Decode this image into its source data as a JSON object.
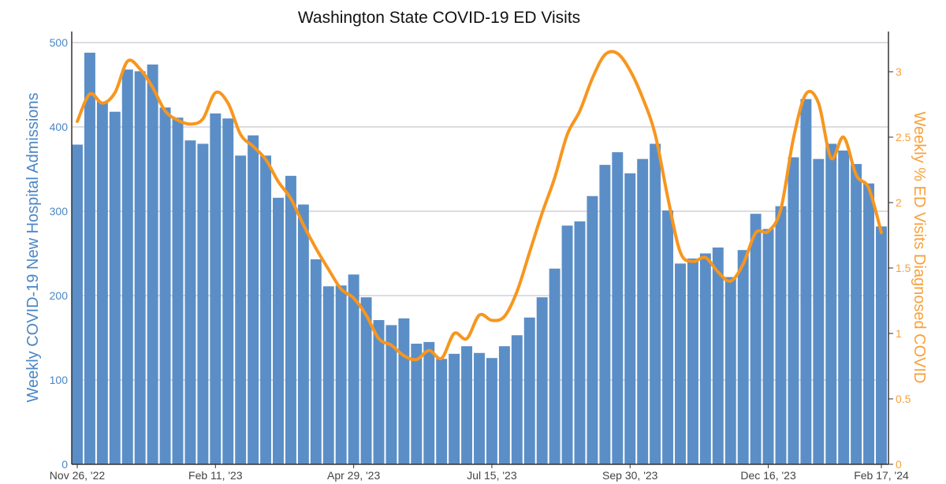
{
  "chart_data": {
    "type": "bar+line",
    "title": "Washington State COVID-19 ED Visits",
    "ylabel_left": "Weekly COVID-19 New Hospital Admissions",
    "ylabel_right": "Weekly % ED Visits Diagnosed COVID",
    "ylim_left": [
      0,
      500
    ],
    "ylim_right": [
      0,
      3.3
    ],
    "yticks_left": [
      "0",
      "100",
      "200",
      "300",
      "400",
      "500"
    ],
    "yticks_right": [
      "0",
      "0.5",
      "1",
      "1.5",
      "2",
      "2.5",
      "3"
    ],
    "xtick_labels": [
      {
        "index": 0,
        "label": "Nov 26, '22"
      },
      {
        "index": 11,
        "label": "Feb 11, '23"
      },
      {
        "index": 22,
        "label": "Apr 29, '23"
      },
      {
        "index": 33,
        "label": "Jul 15, '23"
      },
      {
        "index": 44,
        "label": "Sep 30, '23"
      },
      {
        "index": 55,
        "label": "Dec 16, '23"
      },
      {
        "index": 64,
        "label": "Feb 17, '24"
      }
    ],
    "grid": true,
    "colors": {
      "bars": "#5b8ec6",
      "line": "#f7961f",
      "left_axis": "#4a86c5",
      "right_axis": "#f7a13a"
    },
    "series": [
      {
        "type": "bar",
        "axis": "left",
        "values": [
          379,
          488,
          430,
          418,
          468,
          466,
          474,
          423,
          411,
          384,
          380,
          416,
          410,
          366,
          390,
          366,
          316,
          342,
          308,
          243,
          211,
          212,
          225,
          198,
          171,
          165,
          173,
          143,
          145,
          125,
          131,
          140,
          132,
          126,
          140,
          153,
          174,
          198,
          232,
          283,
          288,
          318,
          355,
          370,
          345,
          362,
          380,
          301,
          238,
          244,
          250,
          257,
          222,
          254,
          297,
          279,
          306,
          364,
          433,
          362,
          380,
          372,
          356,
          333,
          282
        ]
      },
      {
        "type": "line",
        "axis": "right",
        "values": [
          2.62,
          2.83,
          2.76,
          2.84,
          3.08,
          3.02,
          2.88,
          2.7,
          2.63,
          2.6,
          2.64,
          2.84,
          2.76,
          2.52,
          2.43,
          2.33,
          2.16,
          2.03,
          1.83,
          1.65,
          1.49,
          1.34,
          1.27,
          1.14,
          0.96,
          0.91,
          0.83,
          0.8,
          0.87,
          0.81,
          1.0,
          0.96,
          1.14,
          1.1,
          1.13,
          1.32,
          1.62,
          1.92,
          2.19,
          2.52,
          2.7,
          2.95,
          3.13,
          3.14,
          3.01,
          2.8,
          2.52,
          2.04,
          1.62,
          1.55,
          1.58,
          1.47,
          1.4,
          1.53,
          1.77,
          1.78,
          1.95,
          2.49,
          2.83,
          2.76,
          2.34,
          2.5,
          2.21,
          2.11,
          1.77
        ]
      }
    ]
  }
}
